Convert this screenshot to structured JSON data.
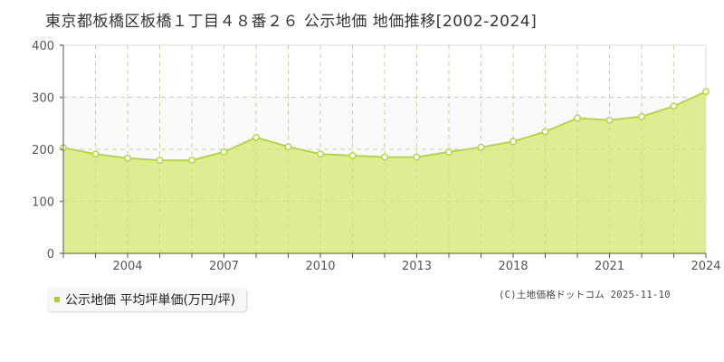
{
  "title": "東京都板橋区板橋１丁目４８番２６ 公示地価 地価推移[2002-2024]",
  "legend": {
    "label": "公示地価 平均坪単価(万円/坪)",
    "color": "#a9cf31"
  },
  "copyright": "(C)土地価格ドットコム 2025-11-10",
  "colors": {
    "area_fill": "#dced94",
    "line": "#b5d83a",
    "marker_stroke": "#b5d83a",
    "marker_fill": "#ffffff",
    "grid": "#c8c8c8",
    "upper_band": "#fafafa"
  },
  "chart_data": {
    "type": "area",
    "title": "東京都板橋区板橋１丁目４８番２６ 公示地価 地価推移[2002-2024]",
    "xlabel": "",
    "ylabel": "",
    "ylim": [
      0,
      400
    ],
    "yticks": [
      0,
      100,
      200,
      300,
      400
    ],
    "x_tick_labels": [
      "2004",
      "2007",
      "2010",
      "2013",
      "2018",
      "2021",
      "2024"
    ],
    "grid": true,
    "legend_position": "bottom-left",
    "categories": [
      "2002",
      "2003",
      "2004",
      "2005",
      "2006",
      "2007",
      "2008",
      "2009",
      "2010",
      "2011",
      "2012",
      "2013",
      "2016",
      "2017",
      "2018",
      "2019",
      "2020",
      "2021",
      "2022",
      "2023",
      "2024"
    ],
    "series": [
      {
        "name": "公示地価 平均坪単価(万円/坪)",
        "values": [
          203,
          191,
          183,
          179,
          179,
          195,
          223,
          205,
          191,
          188,
          185,
          185,
          195,
          204,
          215,
          234,
          260,
          256,
          263,
          283,
          311
        ]
      }
    ]
  }
}
